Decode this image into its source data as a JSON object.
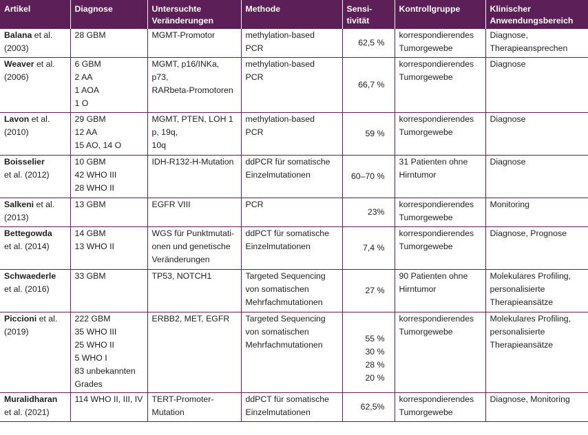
{
  "header": [
    "Artikel",
    "Diagnose",
    "Untersuchte\nVeränderungen",
    "Methode",
    "Sensi-\ntivität",
    "Kontrollgruppe",
    "Klinischer\nAnwendungsbereich"
  ],
  "rows": [
    {
      "author": "Balana",
      "citation": " et al.\n(2003)",
      "diagnose": "28 GBM",
      "veraenderungen": "MGMT-Promotor",
      "methode": "methylation-based\nPCR",
      "sensitivitaet": "62,5 %",
      "kontrollgruppe": "korrespondierendes\nTumorgewebe",
      "anwendung": "Diagnose,\nTherapieansprechen"
    },
    {
      "author": "Weaver",
      "citation": " et al.\n(2006)",
      "diagnose": "6 GBM\n2 AA\n1 AOA\n1 O",
      "veraenderungen": "MGMT, p16/INKa,\np73,\nRARbeta-Promotoren",
      "methode": "methylation-based\nPCR",
      "sensitivitaet": "66,7 %",
      "kontrollgruppe": "korrespondierendes\nTumorgewebe",
      "anwendung": "Diagnose"
    },
    {
      "author": "Lavon",
      "citation": " et al.\n(2010)",
      "diagnose": "29 GBM\n12 AA\n15 AO, 14 O",
      "veraenderungen": "MGMT, PTEN, LOH 1\np, 19q,\n10q",
      "methode": "methylation-based\nPCR",
      "sensitivitaet": "59 %",
      "kontrollgruppe": "korrespondierendes\nTumorgewebe",
      "anwendung": "Diagnose"
    },
    {
      "author": "Boisselier",
      "citation": "\net al. (2012)",
      "diagnose": "10 GBM\n42 WHO III\n28 WHO II",
      "veraenderungen": "IDH-R132-H-Mutation",
      "methode": "ddPCR für somatische\nEinzelmutationen",
      "sensitivitaet": "60–70 %",
      "kontrollgruppe": "31 Patienten ohne\nHirntumor",
      "anwendung": "Diagnose"
    },
    {
      "author": "Salkeni",
      "citation": " et al.\n(2013)",
      "diagnose": "13 GBM",
      "veraenderungen": "EGFR VIII",
      "methode": "PCR",
      "sensitivitaet": "23%",
      "kontrollgruppe": "korrespondierendes\nTumorgewebe",
      "anwendung": "Monitoring"
    },
    {
      "author": "Bettegowda",
      "citation": "\net al. (2014)",
      "diagnose": "14 GBM\n13 WHO II",
      "veraenderungen": "WGS für Punktmutati-\nonen und genetische\nVeränderungen",
      "methode": "ddPCT für somatische\nEinzelmutationen",
      "sensitivitaet": "7,4 %",
      "kontrollgruppe": "korrespondierendes\nTumorgewebe",
      "anwendung": "Diagnose, Prognose"
    },
    {
      "author": "Schwaederle",
      "citation": "\net al. (2016)",
      "diagnose": "33 GBM",
      "veraenderungen": "TP53, NOTCH1",
      "methode": "Targeted Sequencing\nvon somatischen\nMehrfachmutationen",
      "sensitivitaet": "27 %",
      "kontrollgruppe": "90 Patienten ohne\nHirntumor",
      "anwendung": "Molekulares Profiling,\npersonalisierte\nTherapieansätze"
    },
    {
      "author": "Piccioni",
      "citation": " et al.\n(2019)",
      "diagnose": "222 GBM\n35 WHO III\n25 WHO II\n5 WHO I\n83 unbekannten\nGrades",
      "veraenderungen": "ERBB2, MET, EGFR",
      "methode": "Targeted Sequencing\nvon somatischen\nMehrfachmutationen",
      "sensitivitaet": "55 %\n30 %\n28 %\n20 %",
      "kontrollgruppe": "korrespondierendes\nTumorgewebe",
      "anwendung": "Molekulares Profiling,\npersonalisierte\nTherapieansätze"
    },
    {
      "author": "Muralidharan",
      "citation": "\net al. (2021)",
      "diagnose": "114 WHO II, III, IV",
      "veraenderungen": "TERT-Promoter-\nMutation",
      "methode": "ddPCT für somatische\nEinzelmutationen",
      "sensitivitaet": "62,5%",
      "kontrollgruppe": "korrespondierendes\nTumorgewebe",
      "anwendung": "Diagnose, Monitoring"
    }
  ]
}
